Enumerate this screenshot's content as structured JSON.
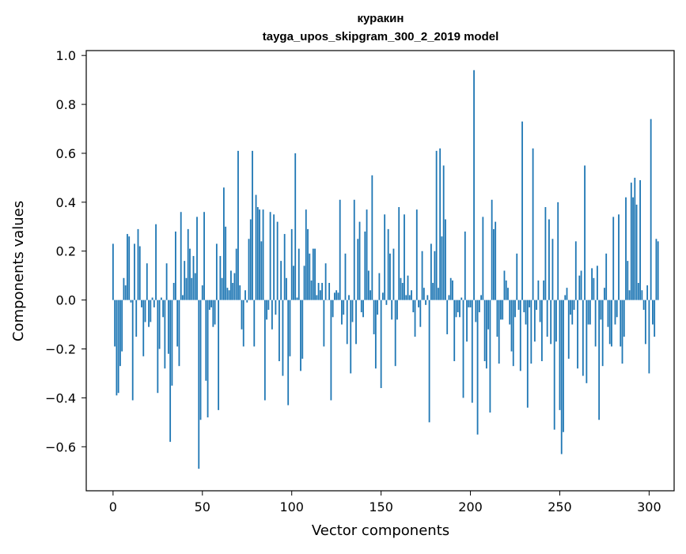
{
  "chart_data": {
    "type": "bar",
    "title": "куракин",
    "subtitle": "tayga_upos_skipgram_300_2_2019 model",
    "xlabel": "Vector components",
    "ylabel": "Components values",
    "xlim": [
      -15,
      314
    ],
    "ylim": [
      -0.78,
      1.02
    ],
    "x_ticks": [
      0,
      50,
      100,
      150,
      200,
      250,
      300
    ],
    "y_ticks": [
      -0.6,
      -0.4,
      -0.2,
      0.0,
      0.2,
      0.4,
      0.6,
      0.8,
      1.0
    ],
    "x_tick_labels": [
      "0",
      "50",
      "100",
      "150",
      "200",
      "250",
      "300"
    ],
    "y_tick_labels": [
      "−0.6",
      "−0.4",
      "−0.2",
      "0.0",
      "0.2",
      "0.4",
      "0.6",
      "0.8",
      "1.0"
    ],
    "bar_color": "#1f77b4",
    "grid": false,
    "x_start": 0,
    "values": [
      0.23,
      -0.19,
      -0.39,
      -0.38,
      -0.27,
      -0.21,
      0.09,
      0.06,
      0.27,
      0.26,
      -0.01,
      -0.41,
      0.23,
      -0.15,
      0.29,
      0.22,
      -0.03,
      -0.23,
      -0.09,
      0.15,
      -0.11,
      -0.09,
      0.01,
      -0.03,
      0.31,
      -0.38,
      -0.2,
      0.01,
      -0.07,
      -0.28,
      0.15,
      -0.22,
      -0.58,
      -0.35,
      0.07,
      0.28,
      -0.19,
      -0.27,
      0.36,
      0.02,
      0.16,
      0.09,
      0.29,
      0.21,
      0.09,
      0.18,
      0.11,
      0.34,
      -0.69,
      -0.49,
      0.06,
      0.36,
      -0.33,
      -0.48,
      -0.04,
      -0.03,
      -0.11,
      -0.1,
      0.23,
      -0.45,
      0.18,
      0.09,
      0.46,
      0.3,
      0.05,
      0.04,
      0.12,
      0.07,
      0.11,
      0.21,
      0.61,
      0.06,
      -0.12,
      -0.19,
      0.04,
      -0.01,
      0.25,
      0.33,
      0.61,
      -0.19,
      0.43,
      0.38,
      0.37,
      0.24,
      0.37,
      -0.41,
      -0.08,
      -0.04,
      0.36,
      -0.12,
      0.35,
      -0.06,
      0.32,
      -0.25,
      0.16,
      -0.31,
      0.27,
      0.09,
      -0.43,
      -0.23,
      0.29,
      0.14,
      0.6,
      0.01,
      0.21,
      -0.29,
      -0.24,
      0.14,
      0.37,
      0.29,
      0.19,
      0.08,
      0.21,
      0.21,
      0.02,
      0.07,
      0.04,
      0.07,
      -0.19,
      0.15,
      0.0,
      0.07,
      -0.41,
      -0.07,
      0.03,
      0.04,
      0.03,
      0.41,
      -0.1,
      -0.06,
      0.19,
      -0.18,
      0.02,
      -0.3,
      -0.09,
      0.41,
      -0.18,
      0.25,
      0.32,
      -0.05,
      -0.07,
      0.28,
      0.37,
      0.12,
      0.04,
      0.51,
      -0.14,
      -0.28,
      -0.06,
      0.11,
      -0.36,
      0.03,
      0.35,
      -0.02,
      0.29,
      0.19,
      -0.08,
      0.21,
      -0.27,
      -0.08,
      0.38,
      0.09,
      0.07,
      0.35,
      0.02,
      0.1,
      0.02,
      0.04,
      -0.05,
      -0.15,
      0.37,
      -0.03,
      -0.11,
      0.2,
      0.05,
      -0.02,
      0.02,
      -0.5,
      0.23,
      0.07,
      0.2,
      0.61,
      0.05,
      0.62,
      0.26,
      0.55,
      0.33,
      -0.14,
      0.02,
      0.09,
      0.08,
      -0.25,
      -0.07,
      -0.05,
      -0.07,
      0.01,
      -0.4,
      0.28,
      -0.17,
      -0.03,
      -0.03,
      -0.42,
      0.94,
      -0.09,
      -0.55,
      -0.05,
      0.02,
      0.34,
      -0.25,
      -0.28,
      -0.12,
      -0.46,
      0.41,
      0.29,
      0.32,
      -0.15,
      -0.26,
      -0.08,
      -0.08,
      0.12,
      0.08,
      0.05,
      -0.1,
      -0.21,
      -0.27,
      -0.07,
      0.19,
      -0.04,
      -0.29,
      0.73,
      -0.05,
      -0.1,
      -0.44,
      -0.03,
      -0.26,
      0.62,
      -0.17,
      -0.04,
      0.08,
      -0.09,
      -0.25,
      0.08,
      0.38,
      -0.15,
      0.33,
      -0.18,
      0.25,
      -0.53,
      -0.17,
      0.4,
      -0.45,
      -0.63,
      -0.54,
      0.02,
      0.05,
      -0.24,
      -0.06,
      -0.1,
      -0.04,
      0.24,
      -0.28,
      0.1,
      0.12,
      -0.31,
      0.55,
      -0.34,
      -0.1,
      -0.1,
      0.13,
      0.09,
      -0.19,
      0.14,
      -0.49,
      -0.08,
      -0.27,
      0.05,
      0.19,
      -0.11,
      -0.18,
      -0.19,
      0.34,
      -0.1,
      -0.07,
      0.35,
      -0.19,
      -0.26,
      -0.15,
      0.42,
      0.16,
      0.04,
      0.48,
      0.42,
      0.5,
      0.39,
      0.07,
      0.49,
      0.04,
      -0.04,
      -0.18,
      0.06,
      -0.3,
      0.74,
      -0.1,
      -0.15,
      0.25,
      0.24
    ]
  }
}
